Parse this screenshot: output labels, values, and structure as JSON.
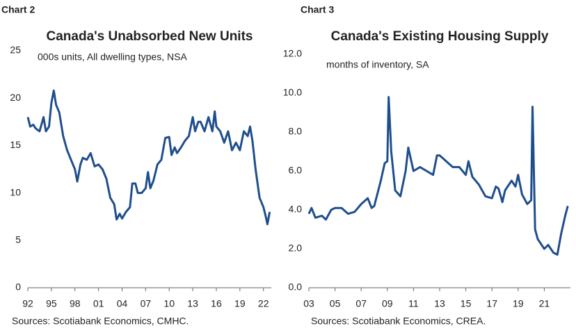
{
  "chart_data": [
    {
      "type": "line",
      "label": "Chart 2",
      "title": "Canada's Unabsorbed New Units",
      "subtitle": "000s units, All dwelling types, NSA",
      "source": "Sources: Scotiabank Economics, CMHC.",
      "color": "#1f4e8c",
      "x": [
        1992,
        1992.3,
        1992.7,
        1993,
        1993.5,
        1994,
        1994.3,
        1994.7,
        1995,
        1995.3,
        1995.6,
        1996,
        1996.5,
        1997,
        1997.5,
        1998,
        1998.3,
        1998.7,
        1999,
        1999.5,
        2000,
        2000.5,
        2001,
        2001.5,
        2002,
        2002.5,
        2003,
        2003.3,
        2003.7,
        2004,
        2004.5,
        2005,
        2005.3,
        2005.7,
        2006,
        2006.5,
        2007,
        2007.3,
        2007.6,
        2008,
        2008.5,
        2009,
        2009.5,
        2010,
        2010.3,
        2010.7,
        2011,
        2011.5,
        2012,
        2012.5,
        2013,
        2013.3,
        2013.7,
        2014,
        2014.5,
        2015,
        2015.5,
        2015.8,
        2016,
        2016.5,
        2017,
        2017.5,
        2018,
        2018.5,
        2019,
        2019.5,
        2020,
        2020.3,
        2020.6,
        2021,
        2021.5,
        2022,
        2022.3,
        2022.5,
        2022.8
      ],
      "values": [
        18,
        17,
        17.2,
        16.8,
        16.5,
        18,
        16.5,
        17,
        19.5,
        20.8,
        19.3,
        18.5,
        16,
        14.5,
        13.5,
        12.5,
        11.2,
        13,
        13.7,
        13.5,
        14.2,
        12.8,
        13,
        12.5,
        11.5,
        9.5,
        8.8,
        7.2,
        7.8,
        7.3,
        8,
        8.5,
        11,
        11,
        10,
        10,
        10.5,
        12.2,
        10.5,
        11.3,
        13,
        13.5,
        15.8,
        15.9,
        14,
        14.8,
        14.2,
        14.8,
        15.5,
        16,
        18,
        16.5,
        17.5,
        17.5,
        16.5,
        18,
        16.5,
        18.6,
        17,
        16.5,
        15.3,
        16.5,
        14.5,
        15.3,
        14.5,
        16.5,
        16,
        17,
        15.5,
        12.5,
        9.5,
        8.5,
        7.5,
        6.7,
        8
      ],
      "xlim": [
        1992,
        2023
      ],
      "ylim": [
        0,
        25
      ],
      "xticks": [
        {
          "value": 1992,
          "label": "92"
        },
        {
          "value": 1995,
          "label": "95"
        },
        {
          "value": 1998,
          "label": "98"
        },
        {
          "value": 2001,
          "label": "01"
        },
        {
          "value": 2004,
          "label": "04"
        },
        {
          "value": 2007,
          "label": "07"
        },
        {
          "value": 2010,
          "label": "10"
        },
        {
          "value": 2013,
          "label": "13"
        },
        {
          "value": 2016,
          "label": "16"
        },
        {
          "value": 2019,
          "label": "19"
        },
        {
          "value": 2022,
          "label": "22"
        }
      ],
      "yticks": [
        0,
        5,
        10,
        15,
        20,
        25
      ]
    },
    {
      "type": "line",
      "label": "Chart 3",
      "title": "Canada's Existing Housing Supply",
      "subtitle": "months of inventory, SA",
      "source": "Sources: Scotiabank Economics, CREA.",
      "color": "#1f4e8c",
      "x": [
        2003,
        2003.2,
        2003.5,
        2004,
        2004.3,
        2004.7,
        2005,
        2005.5,
        2006,
        2006.5,
        2007,
        2007.5,
        2007.8,
        2008,
        2008.5,
        2008.8,
        2009,
        2009.1,
        2009.3,
        2009.6,
        2010,
        2010.4,
        2010.6,
        2011,
        2011.5,
        2012,
        2012.5,
        2012.8,
        2013,
        2013.5,
        2014,
        2014.5,
        2015,
        2015.2,
        2015.5,
        2016,
        2016.5,
        2017,
        2017.3,
        2017.5,
        2017.8,
        2018,
        2018.5,
        2018.8,
        2019,
        2019.3,
        2019.7,
        2020,
        2020.1,
        2020.3,
        2020.5,
        2021,
        2021.3,
        2021.7,
        2022,
        2022.3,
        2022.6,
        2022.8
      ],
      "values": [
        3.8,
        4.1,
        3.6,
        3.7,
        3.5,
        4.0,
        4.1,
        4.1,
        3.8,
        3.9,
        4.3,
        4.6,
        4.1,
        4.2,
        5.5,
        6.4,
        6.5,
        9.8,
        7,
        5,
        4.7,
        6,
        7.2,
        6,
        6.2,
        6.0,
        5.8,
        6.8,
        6.8,
        6.5,
        6.2,
        6.2,
        5.8,
        6.5,
        5.7,
        5.3,
        4.7,
        4.6,
        5.2,
        5.1,
        4.4,
        5.0,
        5.5,
        5.2,
        5.8,
        4.8,
        4.3,
        4.5,
        9.3,
        3.0,
        2.5,
        2.0,
        2.2,
        1.8,
        1.7,
        2.8,
        3.7,
        4.2
      ],
      "xlim": [
        2003,
        2023
      ],
      "ylim": [
        0,
        12
      ],
      "xticks": [
        {
          "value": 2003,
          "label": "03"
        },
        {
          "value": 2005,
          "label": "05"
        },
        {
          "value": 2007,
          "label": "07"
        },
        {
          "value": 2009,
          "label": "09"
        },
        {
          "value": 2011,
          "label": "11"
        },
        {
          "value": 2013,
          "label": "13"
        },
        {
          "value": 2015,
          "label": "15"
        },
        {
          "value": 2017,
          "label": "17"
        },
        {
          "value": 2019,
          "label": "19"
        },
        {
          "value": 2021,
          "label": "21"
        }
      ],
      "yticks": [
        {
          "value": 0,
          "label": "0.0"
        },
        {
          "value": 2,
          "label": "2.0"
        },
        {
          "value": 4,
          "label": "4.0"
        },
        {
          "value": 6,
          "label": "6.0"
        },
        {
          "value": 8,
          "label": "8.0"
        },
        {
          "value": 10,
          "label": "10.0"
        },
        {
          "value": 12,
          "label": "12.0"
        }
      ]
    }
  ]
}
